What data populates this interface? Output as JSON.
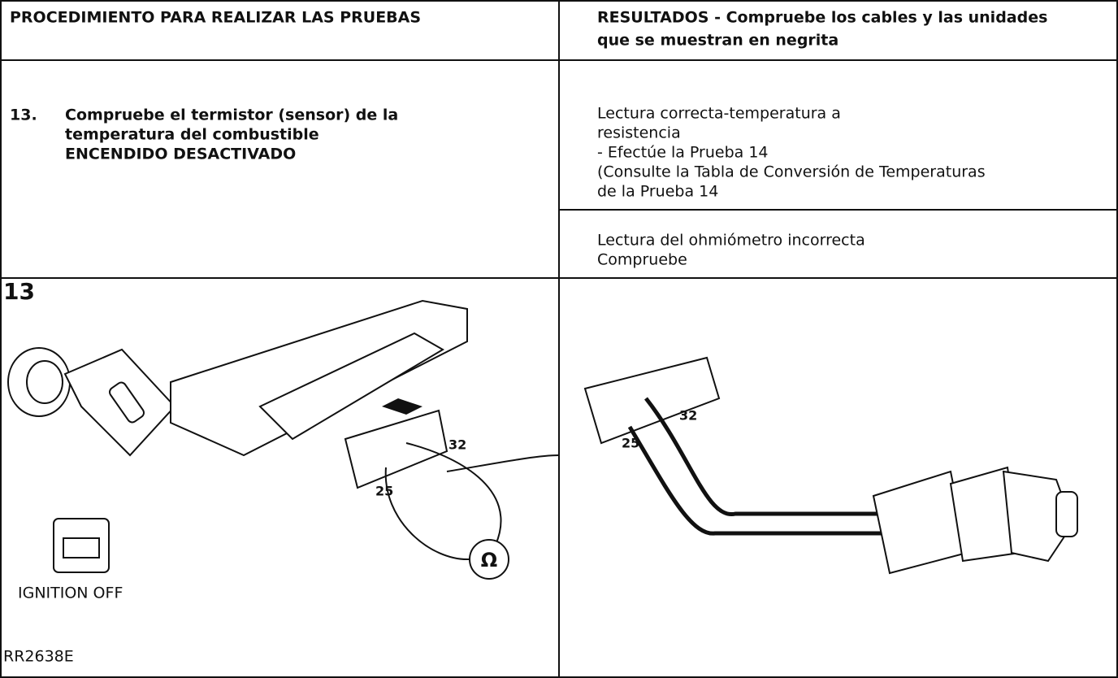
{
  "header": {
    "left": "PROCEDIMIENTO PARA REALIZAR LAS PRUEBAS",
    "right": [
      "RESULTADOS - Compruebe los cables y las unidades",
      "que se muestran en negrita"
    ]
  },
  "step": {
    "number": "13.",
    "lines": [
      "Compruebe el termistor (sensor) de la",
      "temperatura del combustible",
      "ENCENDIDO DESACTIVADO"
    ]
  },
  "results": [
    {
      "lines": [
        "Lectura correcta-temperatura a",
        "resistencia",
        "- Efectúe la Prueba 14",
        "(Consulte la Tabla de Conversión de Temperaturas",
        "de la Prueba 14"
      ]
    },
    {
      "lines": [
        "Lectura del ohmiómetro incorrecta",
        "Compruebe"
      ]
    }
  ],
  "figure": {
    "number": "13",
    "left_labels": {
      "pin_a": "32",
      "pin_b": "25",
      "meter": "Ω",
      "caption": "IGNITION OFF",
      "reference": "RR2638E"
    },
    "right_labels": {
      "pin_a": "32",
      "pin_b": "25"
    }
  }
}
